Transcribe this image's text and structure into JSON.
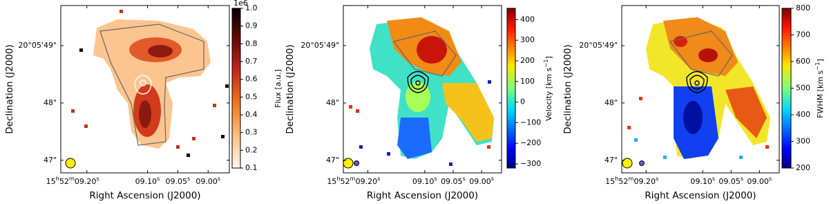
{
  "chart_data": [
    {
      "type": "map",
      "xlabel": "Right Ascension (J2000)",
      "ylabel": "Declination (J2000)",
      "xlim": [
        9.243,
        8.965
      ],
      "xticks": [
        {
          "value": 9.2,
          "label": "15h52m09.20s"
        },
        {
          "value": 9.1,
          "label": "09.10s"
        },
        {
          "value": 9.05,
          "label": "09.05s"
        },
        {
          "value": 9.0,
          "label": "09.00s"
        }
      ],
      "ylim": [
        46.78,
        49.7
      ],
      "yticks": [
        {
          "value": 49,
          "label": "20°05'49\""
        },
        {
          "value": 48,
          "label": "48\""
        },
        {
          "value": 47,
          "label": "47\""
        }
      ],
      "colorbar": {
        "label": "Flux [a.u.]",
        "offset_label": "1e6",
        "lim": [
          0.1,
          1.0
        ],
        "ticks": [
          0.1,
          0.2,
          0.3,
          0.4,
          0.5,
          0.6,
          0.7,
          0.8,
          0.9,
          {
            "value": 1.0,
            "label": "1.0"
          }
        ]
      }
    },
    {
      "type": "map",
      "xlabel": "Right Ascension (J2000)",
      "ylabel": "Declination (J2000)",
      "xlim": [
        9.243,
        8.965
      ],
      "xticks": [
        {
          "value": 9.2,
          "label": "15h52m09.20s"
        },
        {
          "value": 9.1,
          "label": "09.10s"
        },
        {
          "value": 9.05,
          "label": "09.05s"
        },
        {
          "value": 9.0,
          "label": "09.00s"
        }
      ],
      "ylim": [
        46.78,
        49.7
      ],
      "yticks": [
        {
          "value": 49,
          "label": "20°05'49\""
        },
        {
          "value": 48,
          "label": "48\""
        },
        {
          "value": 47,
          "label": "47\""
        }
      ],
      "colorbar": {
        "label": "Velocity [km s−1]",
        "lim": [
          -320,
          455
        ],
        "ticks": [
          {
            "value": -300,
            "label": "−300"
          },
          {
            "value": -200,
            "label": "−200"
          },
          {
            "value": -100,
            "label": "−100"
          },
          0,
          100,
          200,
          300,
          400
        ]
      }
    },
    {
      "type": "map",
      "xlabel": "Right Ascension (J2000)",
      "ylabel": "Declination (J2000)",
      "xlim": [
        9.243,
        8.965
      ],
      "xticks": [
        {
          "value": 9.2,
          "label": "15h52m09.20s"
        },
        {
          "value": 9.1,
          "label": "09.10s"
        },
        {
          "value": 9.05,
          "label": "09.05s"
        },
        {
          "value": 9.0,
          "label": "09.00s"
        }
      ],
      "ylim": [
        46.78,
        49.7
      ],
      "yticks": [
        {
          "value": 49,
          "label": "20°05'49\""
        },
        {
          "value": 48,
          "label": "48\""
        },
        {
          "value": 47,
          "label": "47\""
        }
      ],
      "colorbar": {
        "label": "FWHM [km s−1]",
        "lim": [
          200,
          800
        ],
        "ticks": [
          200,
          300,
          400,
          500,
          600,
          700,
          800
        ]
      }
    }
  ]
}
